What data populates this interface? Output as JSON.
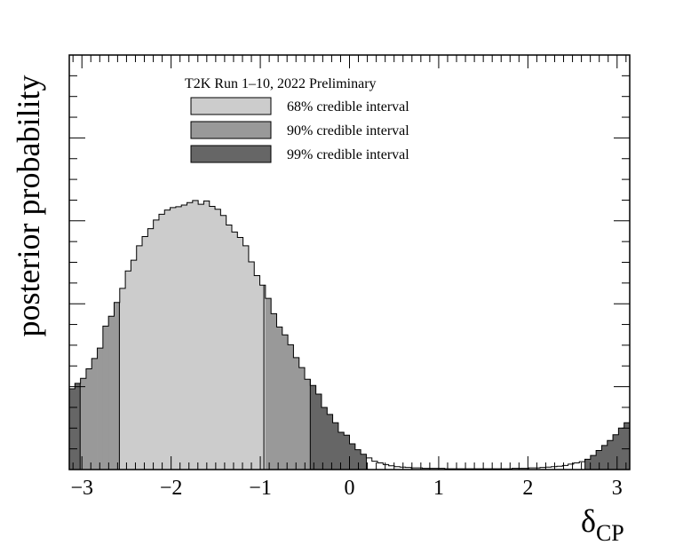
{
  "chart_data": {
    "type": "histogram",
    "title": "",
    "xlabel_main": "δ",
    "xlabel_sub": "CP",
    "ylabel": "posterior probability",
    "xlim": [
      -3.1416,
      3.1416
    ],
    "ylim": [
      0,
      1.0
    ],
    "y_tick_labels_shown": false,
    "x_ticks": [
      -3,
      -2,
      -1,
      0,
      1,
      2,
      3
    ],
    "x_tick_labels": [
      "−3",
      "−2",
      "−1",
      "0",
      "1",
      "2",
      "3"
    ],
    "legend": {
      "title": "T2K Run 1–10, 2022 Preliminary",
      "entries": [
        {
          "label": "68% credible interval",
          "color": "#cccccc"
        },
        {
          "label": "90% credible interval",
          "color": "#999999"
        },
        {
          "label": "99% credible interval",
          "color": "#666666"
        }
      ]
    },
    "intervals": {
      "ci68": [
        [
          -2.58,
          -0.96
        ]
      ],
      "ci90": [
        [
          -3.02,
          -0.44
        ]
      ],
      "ci99": [
        [
          -3.1416,
          0.19
        ],
        [
          2.64,
          3.1416
        ]
      ]
    },
    "colors": {
      "ci68": "#cccccc",
      "ci90": "#999999",
      "ci99": "#666666",
      "outline": "#000000",
      "background": "#ffffff"
    },
    "bin_edges_x": [
      -3.1416,
      -3.0788,
      -3.0159,
      -2.9531,
      -2.8903,
      -2.8274,
      -2.7646,
      -2.7018,
      -2.6389,
      -2.5761,
      -2.5133,
      -2.4504,
      -2.3876,
      -2.3248,
      -2.2619,
      -2.1991,
      -2.1363,
      -2.0735,
      -2.0106,
      -1.9478,
      -1.885,
      -1.8221,
      -1.7593,
      -1.6965,
      -1.6336,
      -1.5708,
      -1.508,
      -1.4451,
      -1.3823,
      -1.3195,
      -1.2566,
      -1.1938,
      -1.131,
      -1.0681,
      -1.0053,
      -0.9425,
      -0.8796,
      -0.8168,
      -0.754,
      -0.6912,
      -0.6283,
      -0.5655,
      -0.5027,
      -0.4398,
      -0.377,
      -0.3142,
      -0.2513,
      -0.1885,
      -0.1257,
      -0.0628,
      0.0,
      0.0628,
      0.1257,
      0.1885,
      0.2513,
      0.3142,
      0.377,
      0.4398,
      0.5027,
      0.5655,
      0.6283,
      0.6912,
      0.754,
      0.8168,
      0.8796,
      0.9425,
      1.0053,
      1.0681,
      1.131,
      1.1938,
      1.2566,
      1.3195,
      1.3823,
      1.4451,
      1.508,
      1.5708,
      1.6336,
      1.6965,
      1.7593,
      1.8221,
      1.885,
      1.9478,
      2.0106,
      2.0735,
      2.1363,
      2.1991,
      2.2619,
      2.3248,
      2.3876,
      2.4504,
      2.5133,
      2.5761,
      2.6389,
      2.7018,
      2.7646,
      2.8274,
      2.8903,
      2.9531,
      3.0159,
      3.0788,
      3.1416
    ],
    "bin_values": [
      0.195,
      0.208,
      0.22,
      0.243,
      0.268,
      0.293,
      0.346,
      0.37,
      0.403,
      0.437,
      0.479,
      0.505,
      0.54,
      0.562,
      0.581,
      0.602,
      0.616,
      0.626,
      0.632,
      0.634,
      0.638,
      0.644,
      0.649,
      0.64,
      0.648,
      0.635,
      0.628,
      0.613,
      0.59,
      0.573,
      0.56,
      0.54,
      0.501,
      0.468,
      0.445,
      0.413,
      0.376,
      0.344,
      0.325,
      0.301,
      0.27,
      0.246,
      0.218,
      0.203,
      0.182,
      0.15,
      0.133,
      0.113,
      0.09,
      0.083,
      0.062,
      0.048,
      0.037,
      0.028,
      0.02,
      0.016,
      0.012,
      0.009,
      0.007,
      0.006,
      0.005,
      0.004,
      0.004,
      0.003,
      0.003,
      0.003,
      0.003,
      0.002,
      0.002,
      0.002,
      0.002,
      0.002,
      0.002,
      0.002,
      0.002,
      0.002,
      0.002,
      0.002,
      0.002,
      0.003,
      0.003,
      0.003,
      0.004,
      0.004,
      0.005,
      0.006,
      0.007,
      0.008,
      0.01,
      0.013,
      0.016,
      0.019,
      0.025,
      0.034,
      0.046,
      0.058,
      0.07,
      0.084,
      0.1,
      0.113,
      0.128
    ]
  }
}
